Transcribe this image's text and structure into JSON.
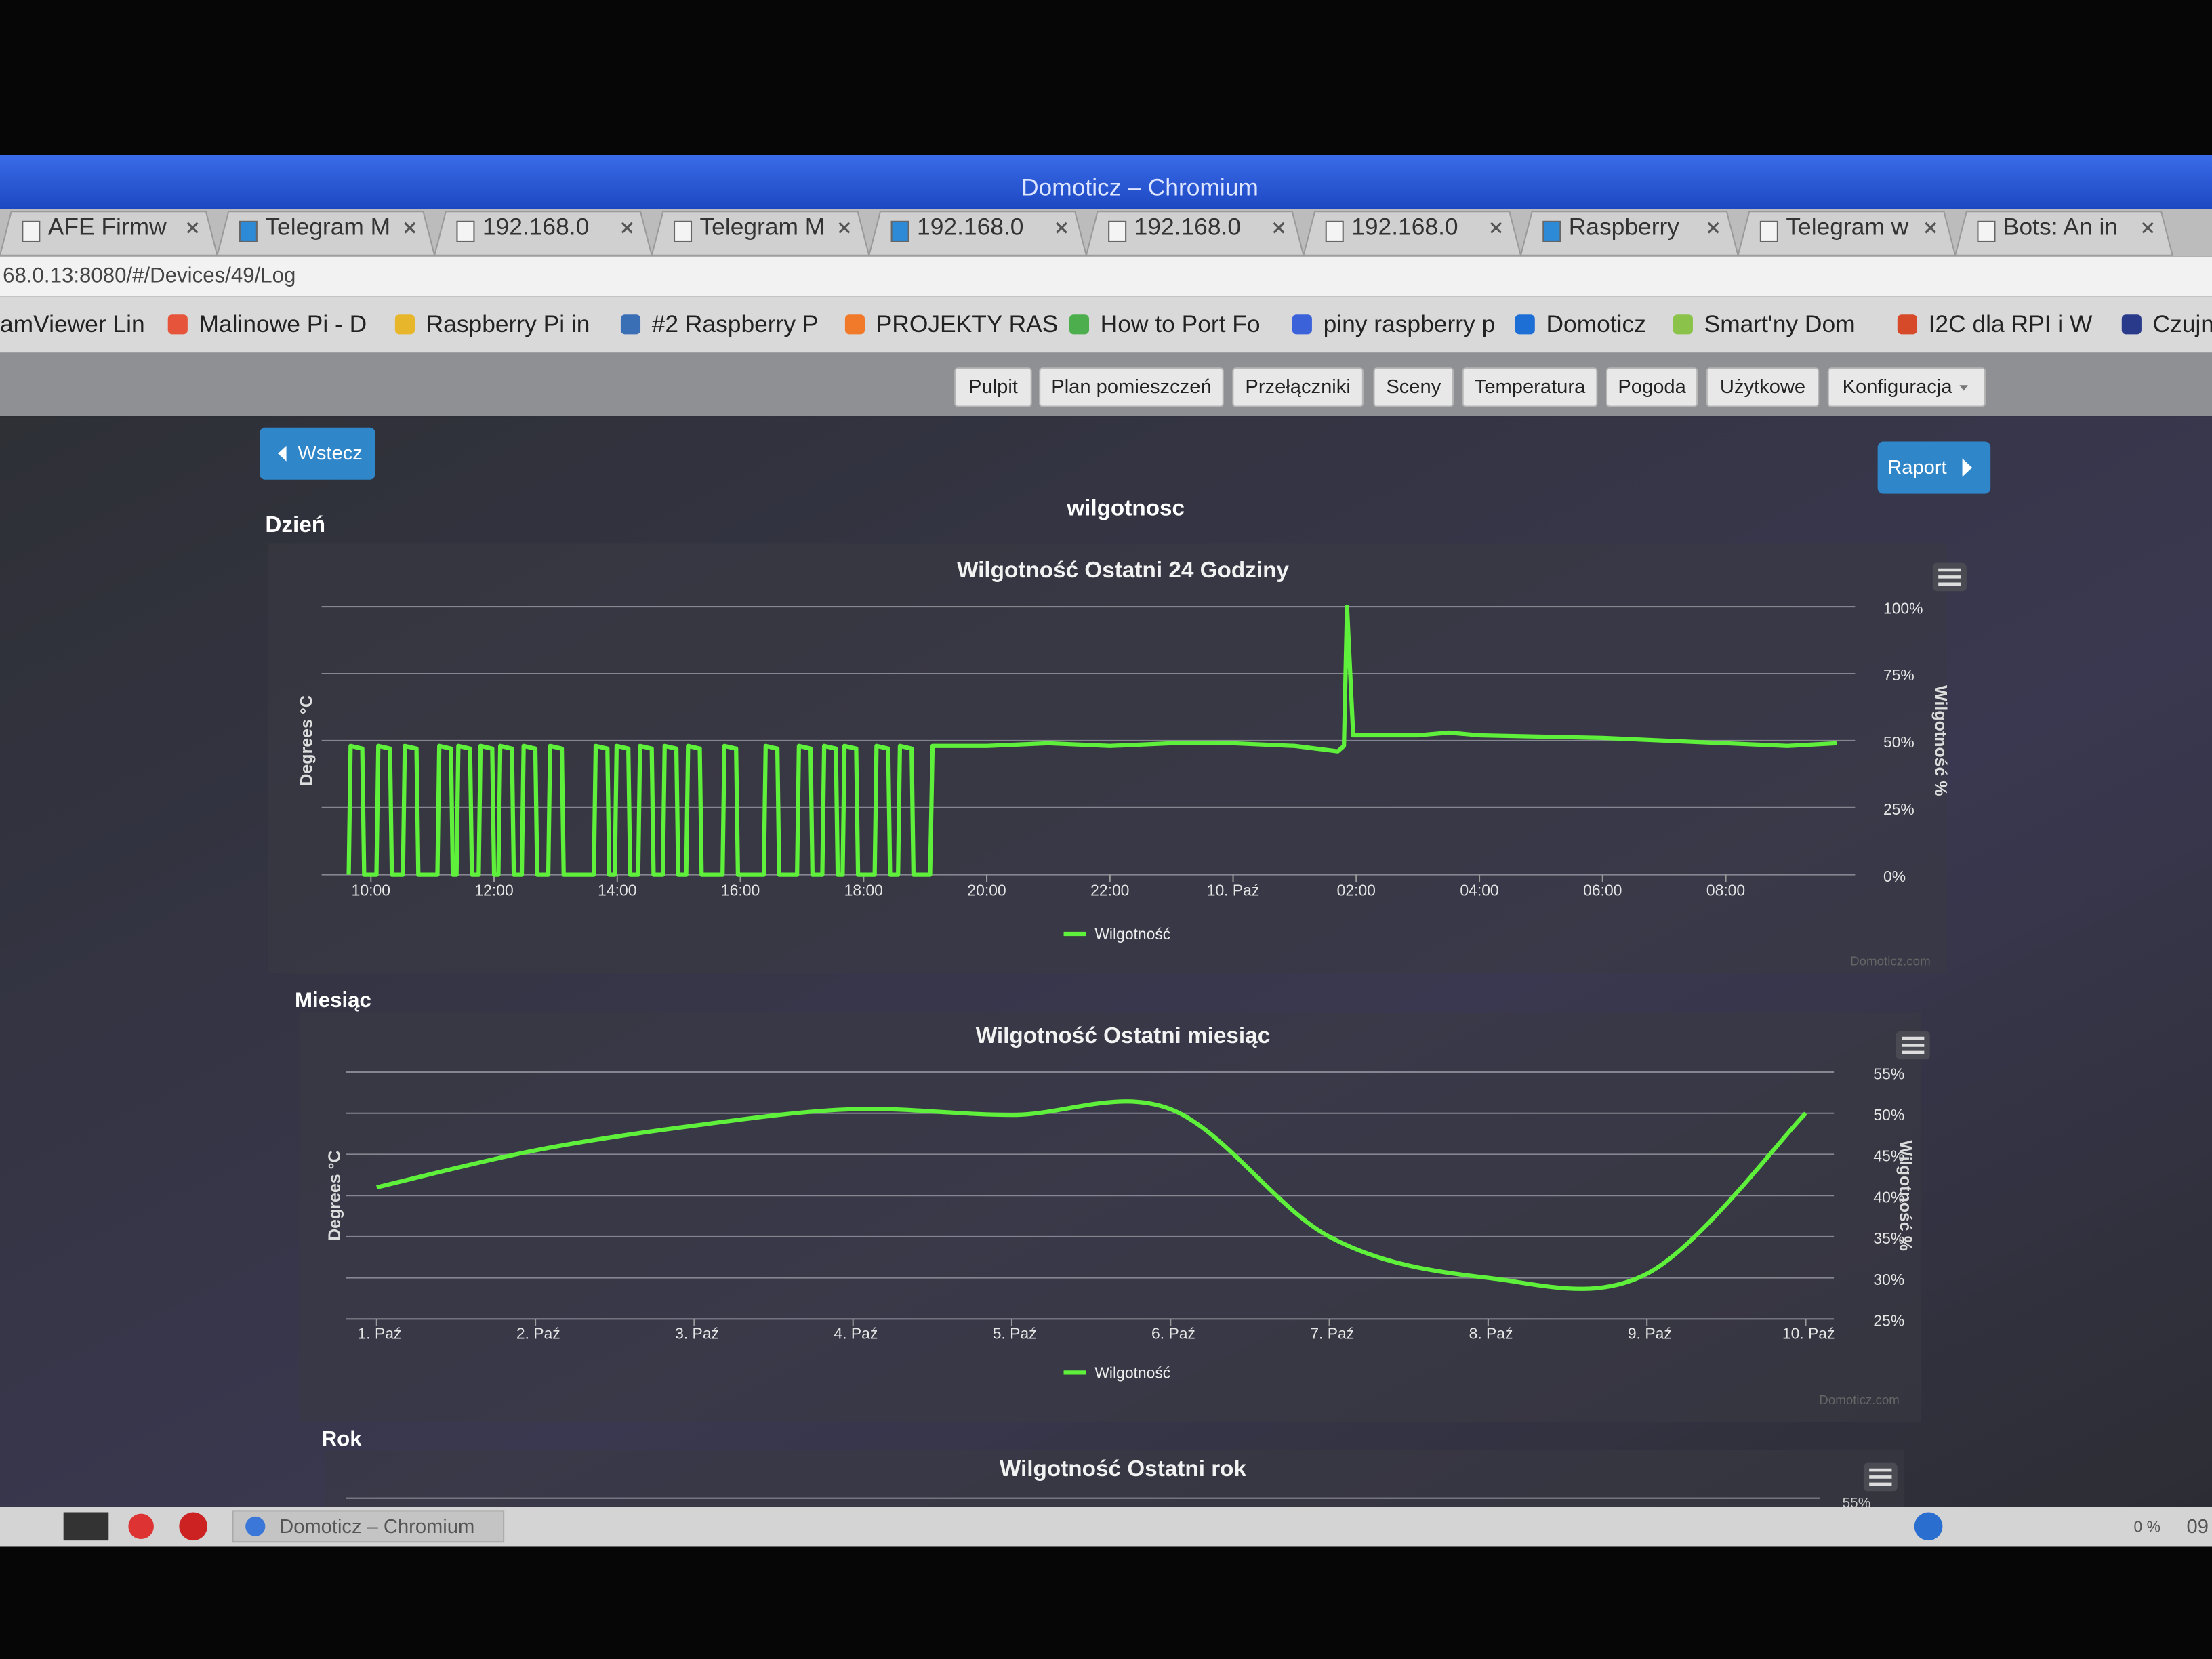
{
  "window": {
    "title": "Domoticz – Chromium"
  },
  "tabs": [
    "AFE Firmw",
    "Telegram M",
    "192.168.0",
    "Telegram M",
    "192.168.0",
    "192.168.0",
    "192.168.0",
    "Raspberry",
    "Telegram w",
    "Bots: An in"
  ],
  "url": "68.0.13:8080/#/Devices/49/Log",
  "bookmarks": [
    "amViewer Lin",
    "Malinowe Pi - D",
    "Raspberry Pi in",
    "#2 Raspberry P",
    "PROJEKTY RAS",
    "How to Port Fo",
    "piny raspberry p",
    "Domoticz",
    "Smart'ny Dom",
    "I2C dla RPI i W",
    "Czujn"
  ],
  "nav": [
    "Pulpit",
    "Plan pomieszczeń",
    "Przełączniki",
    "Sceny",
    "Temperatura",
    "Pogoda",
    "Użytkowe",
    "Konfiguracja"
  ],
  "page": {
    "back": "Wstecz",
    "report": "Raport",
    "device": "wilgotnosc",
    "sections": [
      "Dzień",
      "Miesiąc",
      "Rok"
    ]
  },
  "taskbar": {
    "app": "Domoticz – Chromium",
    "cpu": "0 %",
    "clock": "09"
  },
  "chart_data": [
    {
      "type": "line",
      "title": "Wilgotność Ostatni 24 Godziny",
      "y_label": "Degrees °C",
      "y2_label": "Wilgotność %",
      "credits": "Domoticz.com",
      "grid": true,
      "xlim": [
        9.2,
        34.1
      ],
      "xticks": [
        {
          "value": 10,
          "label": "10:00"
        },
        {
          "value": 12,
          "label": "12:00"
        },
        {
          "value": 14,
          "label": "14:00"
        },
        {
          "value": 16,
          "label": "16:00"
        },
        {
          "value": 18,
          "label": "18:00"
        },
        {
          "value": 20,
          "label": "20:00"
        },
        {
          "value": 22,
          "label": "22:00"
        },
        {
          "value": 24,
          "label": "10. Paź"
        },
        {
          "value": 26,
          "label": "02:00"
        },
        {
          "value": 28,
          "label": "04:00"
        },
        {
          "value": 30,
          "label": "06:00"
        },
        {
          "value": 32,
          "label": "08:00"
        }
      ],
      "ylim": [
        0,
        100
      ],
      "yticks": [
        {
          "value": 0,
          "label": "0%"
        },
        {
          "value": 25,
          "label": "25%"
        },
        {
          "value": 50,
          "label": "50%"
        },
        {
          "value": 75,
          "label": "75%"
        },
        {
          "value": 100,
          "label": "100%"
        }
      ],
      "x": [
        9.64,
        9.67,
        9.86,
        9.89,
        10.09,
        10.12,
        10.31,
        10.34,
        10.52,
        10.55,
        10.74,
        10.77,
        11.08,
        11.11,
        11.3,
        11.33,
        11.39,
        11.42,
        11.61,
        11.64,
        11.75,
        11.78,
        11.97,
        12.0,
        12.07,
        12.1,
        12.29,
        12.32,
        12.45,
        12.48,
        12.67,
        12.7,
        12.88,
        12.91,
        13.1,
        13.13,
        13.62,
        13.65,
        13.84,
        13.87,
        13.96,
        13.99,
        14.18,
        14.21,
        14.34,
        14.37,
        14.56,
        14.59,
        14.74,
        14.77,
        14.96,
        14.99,
        15.12,
        15.15,
        15.34,
        15.37,
        15.71,
        15.74,
        15.93,
        15.96,
        16.38,
        16.41,
        16.6,
        16.63,
        16.92,
        16.95,
        17.14,
        17.17,
        17.33,
        17.36,
        17.55,
        17.58,
        17.66,
        17.69,
        17.88,
        17.91,
        18.18,
        18.21,
        18.4,
        18.43,
        18.56,
        18.59,
        18.78,
        18.81,
        19.08,
        19.12,
        20.0,
        21.0,
        22.0,
        23.0,
        24.0,
        25.0,
        25.7,
        25.8,
        25.85,
        25.95,
        27.0,
        27.5,
        28.0,
        30.0,
        32.0,
        33.0,
        33.8
      ],
      "series": [
        {
          "name": "Wilgotność",
          "color": "#5ef03a",
          "values": [
            0,
            48,
            47,
            0,
            0,
            48,
            47,
            0,
            0,
            48,
            47,
            0,
            0,
            48,
            47,
            0,
            0,
            48,
            47,
            0,
            0,
            48,
            47,
            0,
            0,
            48,
            47,
            0,
            0,
            48,
            47,
            0,
            0,
            48,
            47,
            0,
            0,
            48,
            47,
            0,
            0,
            48,
            47,
            0,
            0,
            48,
            47,
            0,
            0,
            48,
            47,
            0,
            0,
            48,
            47,
            0,
            0,
            48,
            47,
            0,
            0,
            48,
            47,
            0,
            0,
            48,
            47,
            0,
            0,
            48,
            47,
            0,
            0,
            48,
            47,
            0,
            0,
            48,
            47,
            0,
            0,
            48,
            47,
            0,
            0,
            48,
            48,
            49,
            48,
            49,
            49,
            48,
            46,
            48,
            100,
            52,
            52,
            53,
            52,
            51,
            49,
            48,
            49
          ]
        }
      ]
    },
    {
      "type": "line",
      "title": "Wilgotność Ostatni miesiąc",
      "y_label": "Degrees °C",
      "y2_label": "Wilgotność %",
      "credits": "Domoticz.com",
      "grid": true,
      "smooth": true,
      "categories": [
        "1. Paź",
        "2. Paź",
        "3. Paź",
        "4. Paź",
        "5. Paź",
        "6. Paź",
        "7. Paź",
        "8. Paź",
        "9. Paź",
        "10. Paź"
      ],
      "ylim": [
        25,
        55
      ],
      "yticks": [
        {
          "value": 25,
          "label": "25%"
        },
        {
          "value": 30,
          "label": "30%"
        },
        {
          "value": 35,
          "label": "35%"
        },
        {
          "value": 40,
          "label": "40%"
        },
        {
          "value": 45,
          "label": "45%"
        },
        {
          "value": 50,
          "label": "50%"
        },
        {
          "value": 55,
          "label": "55%"
        }
      ],
      "series": [
        {
          "name": "Wilgotność",
          "color": "#5ef03a",
          "values": [
            41,
            45.5,
            48.5,
            50.5,
            49.8,
            50.5,
            35,
            30,
            30.5,
            50
          ]
        }
      ]
    },
    {
      "type": "line",
      "title": "Wilgotność Ostatni rok",
      "yticks": [
        {
          "value": 55,
          "label": "55%"
        }
      ]
    }
  ]
}
